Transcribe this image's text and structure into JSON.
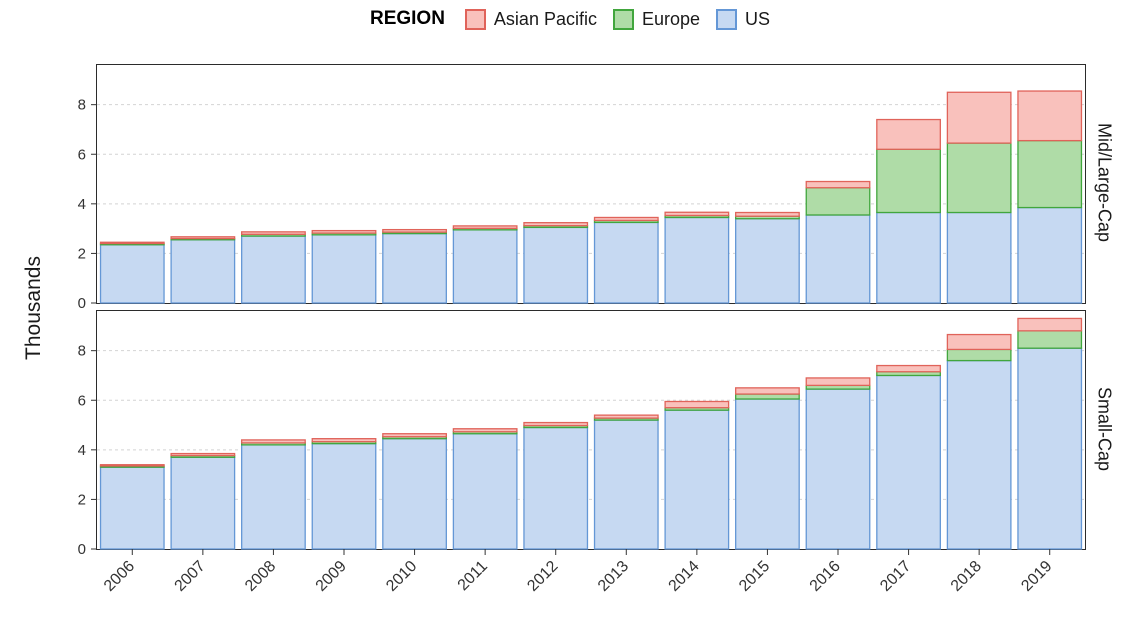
{
  "chart_data": {
    "type": "bar",
    "stacked": true,
    "legend_title": "REGION",
    "legend_position": "top",
    "grid": "horizontal-dashed",
    "ylabel": "Thousands",
    "yticks": [
      0,
      2,
      4,
      6,
      8
    ],
    "ylim": [
      0,
      9.6
    ],
    "categories": [
      "2006",
      "2007",
      "2008",
      "2009",
      "2010",
      "2011",
      "2012",
      "2013",
      "2014",
      "2015",
      "2016",
      "2017",
      "2018",
      "2019"
    ],
    "series_meta": [
      {
        "name": "Asian Pacific",
        "fill": "#F9C1BC",
        "stroke": "#E0635A"
      },
      {
        "name": "Europe",
        "fill": "#AFDCA7",
        "stroke": "#41A63D"
      },
      {
        "name": "US",
        "fill": "#C6D9F2",
        "stroke": "#6497D6"
      }
    ],
    "stack_order_bottom_to_top": [
      "US",
      "Europe",
      "Asian Pacific"
    ],
    "facets": [
      {
        "label": "Mid/Large-Cap",
        "series": [
          {
            "name": "US",
            "values": [
              2.35,
              2.55,
              2.7,
              2.75,
              2.8,
              2.95,
              3.05,
              3.25,
              3.45,
              3.4,
              3.55,
              3.65,
              3.65,
              3.85
            ]
          },
          {
            "name": "Europe",
            "values": [
              0.05,
              0.05,
              0.07,
              0.07,
              0.06,
              0.06,
              0.07,
              0.08,
              0.08,
              0.1,
              1.1,
              2.55,
              2.8,
              2.7
            ]
          },
          {
            "name": "Asian Pacific",
            "values": [
              0.05,
              0.07,
              0.1,
              0.1,
              0.1,
              0.1,
              0.12,
              0.12,
              0.13,
              0.15,
              0.25,
              1.2,
              2.05,
              2.0
            ]
          }
        ]
      },
      {
        "label": "Small-Cap",
        "series": [
          {
            "name": "US",
            "values": [
              3.3,
              3.7,
              4.2,
              4.25,
              4.45,
              4.65,
              4.9,
              5.2,
              5.6,
              6.05,
              6.45,
              7.0,
              7.6,
              8.1
            ]
          },
          {
            "name": "Europe",
            "values": [
              0.05,
              0.07,
              0.08,
              0.08,
              0.08,
              0.08,
              0.08,
              0.08,
              0.1,
              0.2,
              0.15,
              0.15,
              0.45,
              0.7
            ]
          },
          {
            "name": "Asian Pacific",
            "values": [
              0.05,
              0.08,
              0.12,
              0.12,
              0.12,
              0.12,
              0.12,
              0.12,
              0.25,
              0.25,
              0.3,
              0.25,
              0.6,
              0.5
            ]
          }
        ]
      }
    ]
  }
}
